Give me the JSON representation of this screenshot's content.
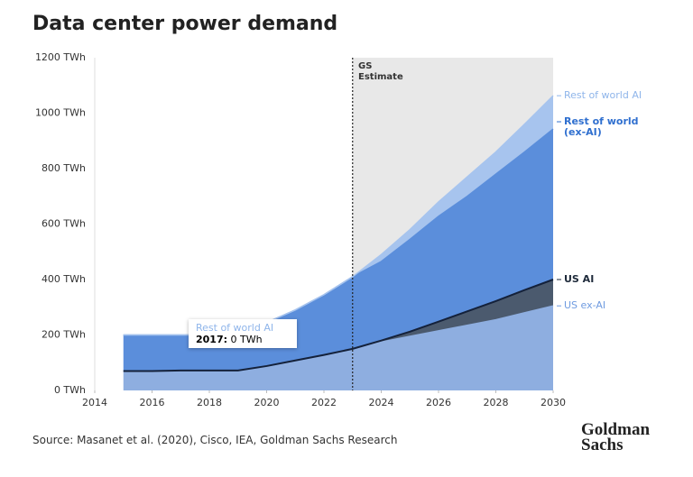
{
  "chart_data": {
    "type": "stacked_area",
    "title": "Data center power demand",
    "source": "Source: Masanet et al. (2020), Cisco, IEA, Goldman Sachs Research",
    "logo": [
      "Goldman",
      "Sachs"
    ],
    "x": [
      2015,
      2016,
      2017,
      2018,
      2019,
      2020,
      2021,
      2022,
      2023,
      2024,
      2025,
      2026,
      2027,
      2028,
      2029,
      2030
    ],
    "series": [
      {
        "name": "US ex-AI",
        "color": "#8eaee0",
        "label_color": "#6f9be0",
        "values": [
          70,
          70,
          72,
          72,
          72,
          88,
          108,
          128,
          150,
          175,
          195,
          215,
          235,
          255,
          280,
          305
        ]
      },
      {
        "name": "US AI",
        "color": "#4b5a6e",
        "label_color": "#1e2a3a",
        "values": [
          0,
          0,
          0,
          0,
          0,
          0,
          0,
          0,
          0,
          5,
          17,
          33,
          50,
          67,
          82,
          95
        ]
      },
      {
        "name": "Rest of world (ex-AI)",
        "color": "#5b8edb",
        "label_color": "#2f6fcf",
        "values": [
          130,
          130,
          128,
          128,
          133,
          157,
          182,
          217,
          260,
          285,
          333,
          380,
          415,
          458,
          498,
          543
        ]
      },
      {
        "name": "Rest of world AI",
        "color": "#a7c4ee",
        "label_color": "#8fb5ea",
        "values": [
          0,
          0,
          0,
          0,
          0,
          0,
          0,
          0,
          0,
          25,
          35,
          52,
          70,
          80,
          100,
          120
        ]
      }
    ],
    "xlim": [
      2014,
      2030
    ],
    "xticks": [
      2014,
      2016,
      2018,
      2020,
      2022,
      2024,
      2026,
      2028,
      2030
    ],
    "ylim": [
      0,
      1200
    ],
    "yticks": [
      {
        "value": 0,
        "label": "0 TWh"
      },
      {
        "value": 200,
        "label": "200 TWh"
      },
      {
        "value": 400,
        "label": "400 TWh"
      },
      {
        "value": 600,
        "label": "600 TWh"
      },
      {
        "value": 800,
        "label": "800 TWh"
      },
      {
        "value": 1000,
        "label": "1000 TWh"
      },
      {
        "value": 1200,
        "label": "1200 TWh"
      }
    ],
    "estimate_start": 2023,
    "estimate_label": "GS Estimate",
    "tooltip": {
      "series": 3,
      "point": 2,
      "date": "2017:",
      "value_label": "0 TWh"
    }
  }
}
